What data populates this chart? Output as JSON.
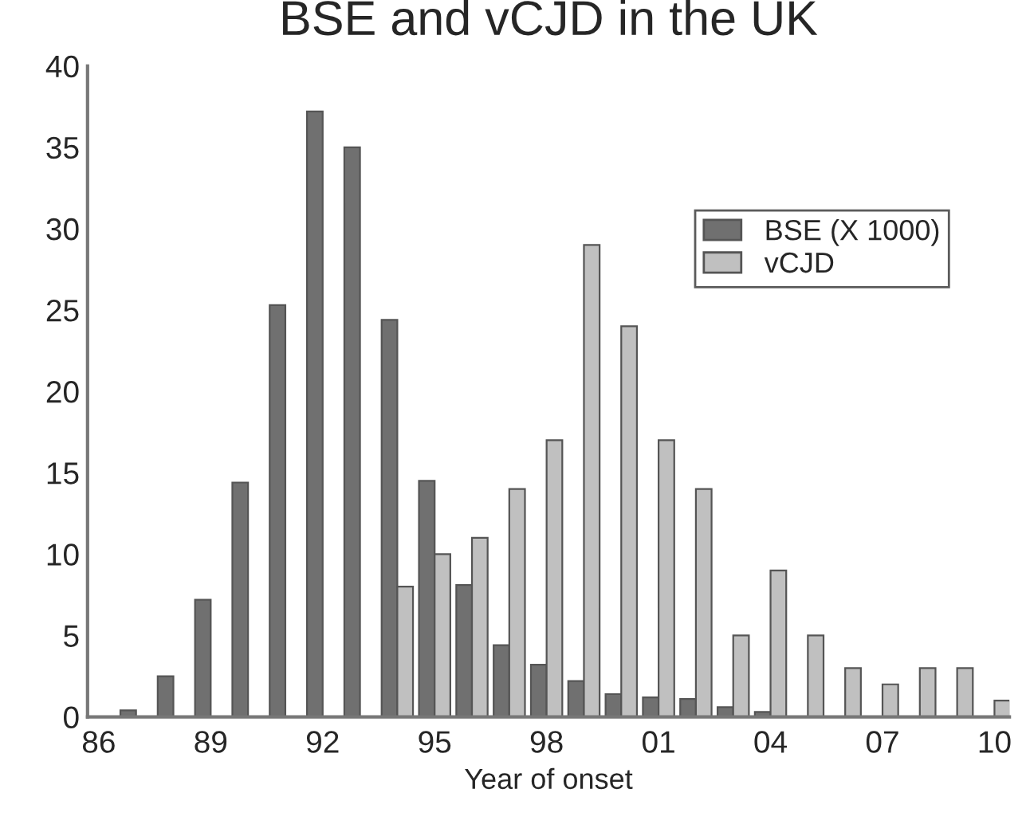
{
  "chart_data": {
    "type": "bar",
    "title": "BSE and vCJD in the UK",
    "xlabel": "Year of onset",
    "categories": [
      "86",
      null,
      null,
      "89",
      null,
      null,
      "92",
      null,
      null,
      "95",
      null,
      null,
      "98",
      null,
      null,
      "01",
      null,
      null,
      "04",
      null,
      null,
      "07",
      null,
      null,
      "10"
    ],
    "series": [
      {
        "name": "BSE (X 1000)",
        "color": "#707070",
        "values": [
          null,
          0.4,
          2.5,
          7.2,
          14.4,
          25.3,
          37.2,
          35,
          24.4,
          14.5,
          8.1,
          4.4,
          3.2,
          2.2,
          1.4,
          1.2,
          1.1,
          0.6,
          0.3,
          null,
          null,
          null,
          null,
          null,
          null
        ]
      },
      {
        "name": "vCJD",
        "color": "#c0c0c0",
        "values": [
          null,
          null,
          null,
          null,
          null,
          null,
          null,
          null,
          8,
          10,
          11,
          14,
          17,
          29,
          24,
          17,
          14,
          5,
          9,
          5,
          3,
          2,
          3,
          3,
          1
        ]
      }
    ],
    "ylim": [
      0,
      40
    ],
    "yticks": [
      0,
      5,
      10,
      15,
      20,
      25,
      30,
      35,
      40
    ],
    "grid": false,
    "legend": "top right"
  }
}
